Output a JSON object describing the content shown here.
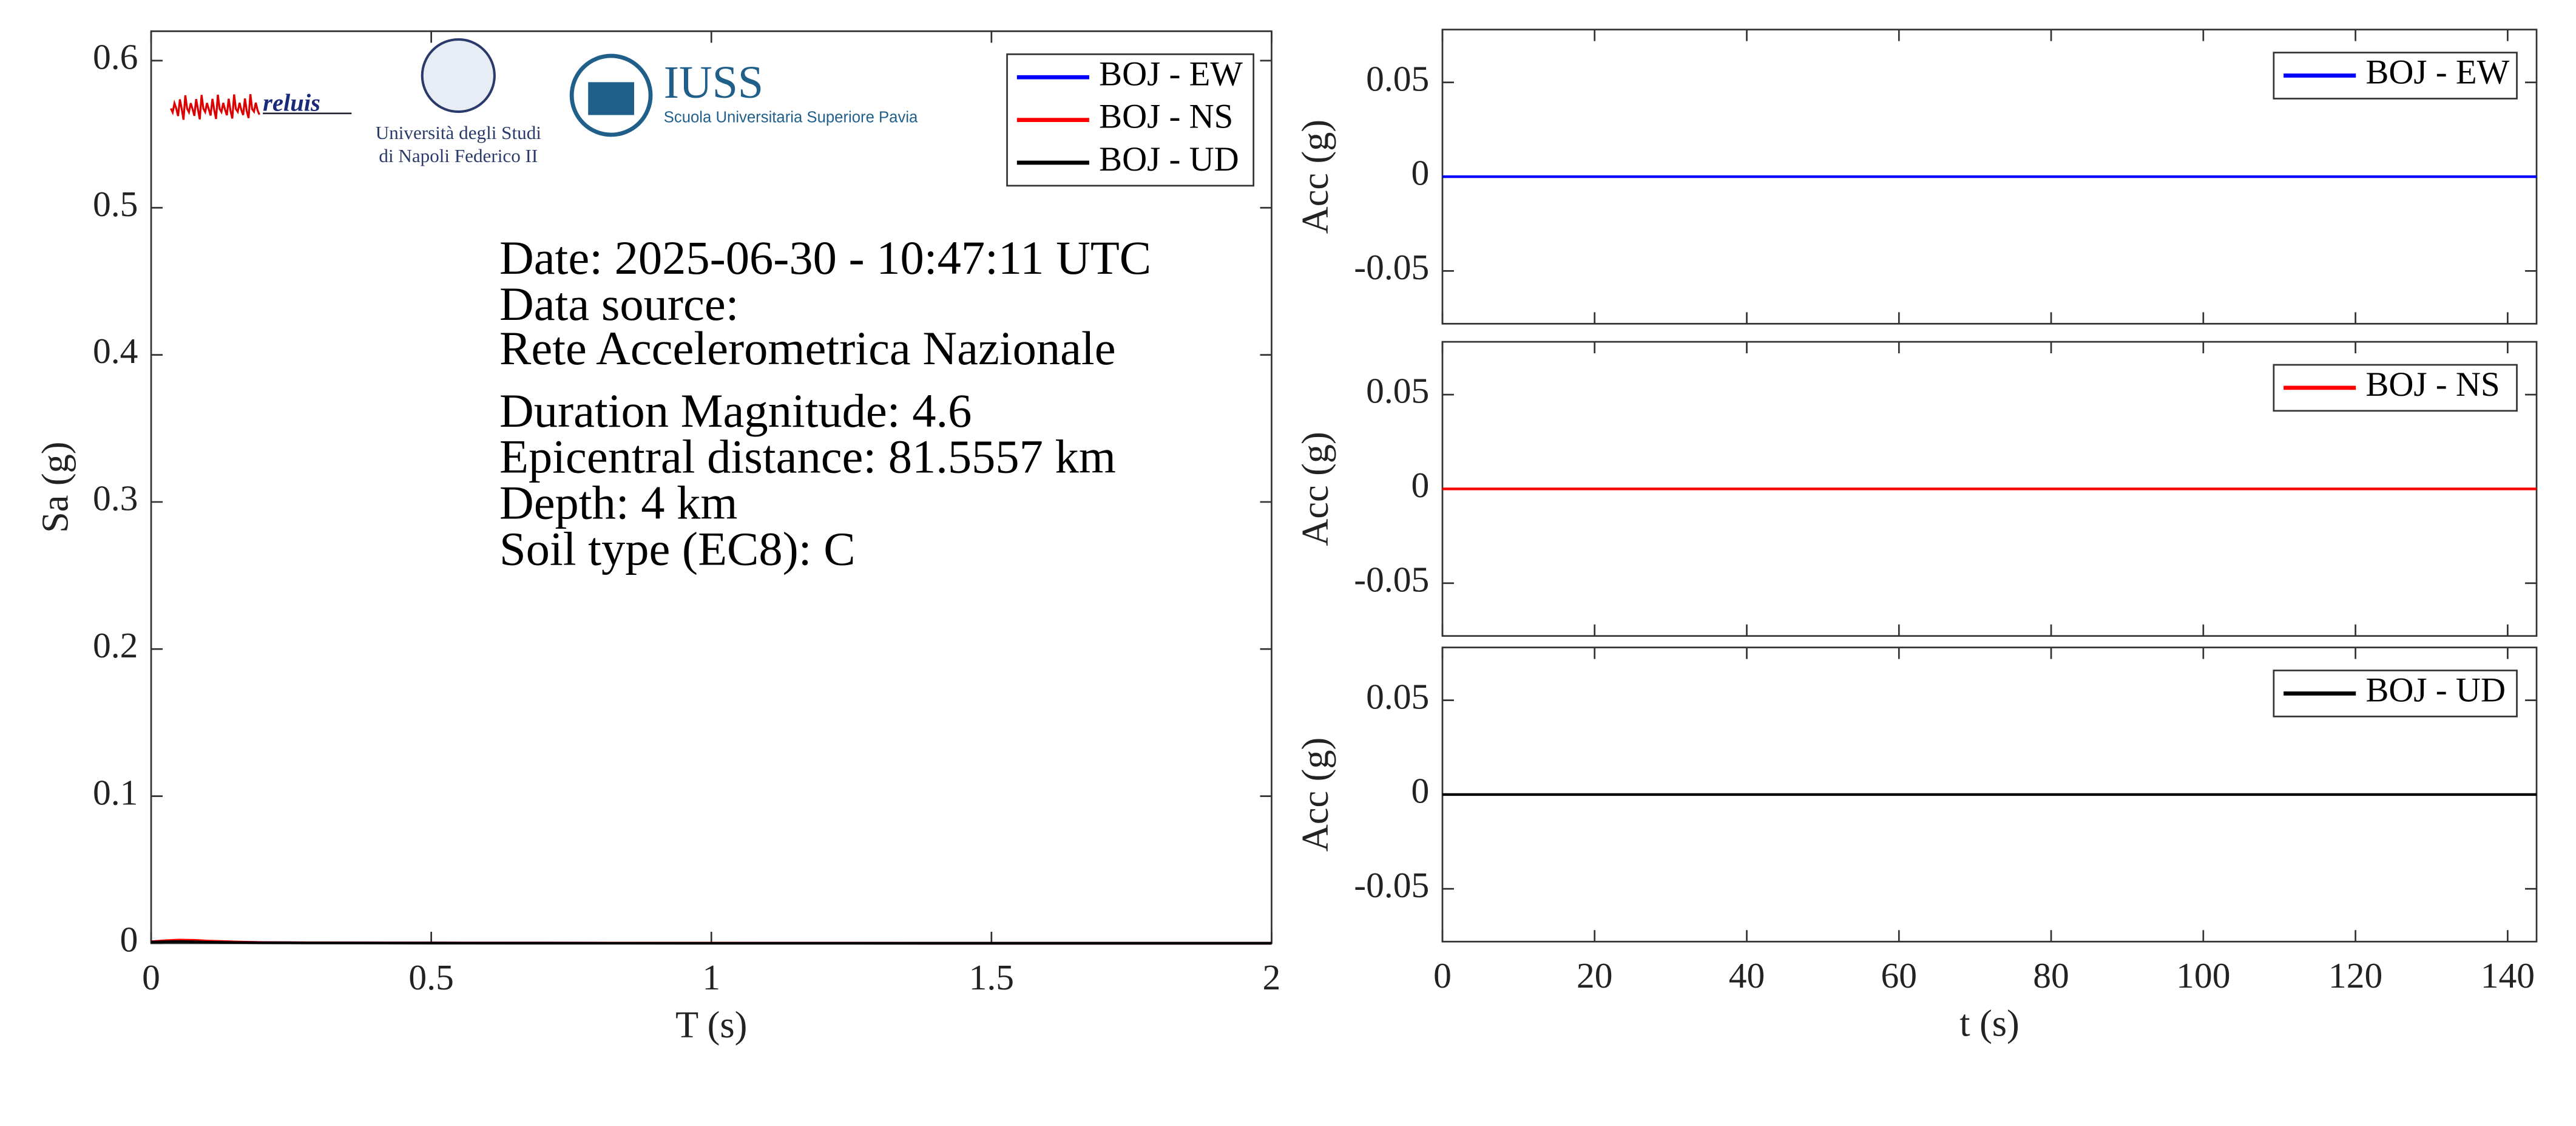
{
  "chart_data": [
    {
      "type": "line",
      "xlabel": "T (s)",
      "ylabel": "Sa (g)",
      "x": [
        0,
        0.02,
        0.05,
        0.08,
        0.1,
        0.15,
        0.2,
        0.3,
        0.5,
        1,
        1.5,
        2
      ],
      "series": [
        {
          "name": "BOJ - EW",
          "color": "#0000ff",
          "values": [
            0.001,
            0.0015,
            0.002,
            0.0018,
            0.0014,
            0.0008,
            0.0005,
            0.0003,
            0.0002,
            0.0001,
            0,
            0
          ]
        },
        {
          "name": "BOJ - NS",
          "color": "#ff0000",
          "values": [
            0.001,
            0.0016,
            0.0022,
            0.002,
            0.0015,
            0.0009,
            0.0005,
            0.0003,
            0.0002,
            0.0001,
            0,
            0
          ]
        },
        {
          "name": "BOJ - UD",
          "color": "#000000",
          "values": [
            0.0008,
            0.001,
            0.0012,
            0.001,
            0.0008,
            0.0005,
            0.0003,
            0.0002,
            0.0001,
            0,
            0,
            0
          ]
        }
      ],
      "xlim": [
        0,
        2
      ],
      "ylim": [
        0,
        0.62
      ],
      "xticks": [
        0,
        0.5,
        1,
        1.5,
        2
      ],
      "yticks": [
        0,
        0.1,
        0.2,
        0.3,
        0.4,
        0.5,
        0.6
      ],
      "legend": "upper right",
      "annotations": [
        "Date: 2025-06-30 - 10:47:11 UTC",
        "Data source:",
        "Rete Accelerometrica Nazionale",
        "Duration Magnitude: 4.6",
        "Epicentral distance: 81.5557 km",
        "Depth: 4 km",
        "Soil type (EC8): C"
      ],
      "logos": [
        "reluis",
        "Università degli Studi",
        "di Napoli Federico II",
        "IUSS",
        "Scuola Universitaria Superiore Pavia"
      ]
    },
    {
      "type": "line",
      "ylabel": "Acc (g)",
      "x": [
        0,
        143.8
      ],
      "series": [
        {
          "name": "BOJ - EW",
          "color": "#0000ff",
          "values": [
            0,
            0
          ]
        }
      ],
      "xlim": [
        0,
        143.8
      ],
      "ylim": [
        -0.078,
        0.078
      ],
      "xticks": [
        0,
        20,
        40,
        60,
        80,
        100,
        120,
        140
      ],
      "yticks": [
        -0.05,
        0,
        0.05
      ],
      "legend": "upper right"
    },
    {
      "type": "line",
      "ylabel": "Acc (g)",
      "x": [
        0,
        143.8
      ],
      "series": [
        {
          "name": "BOJ - NS",
          "color": "#ff0000",
          "values": [
            0,
            0
          ]
        }
      ],
      "xlim": [
        0,
        143.8
      ],
      "ylim": [
        -0.078,
        0.078
      ],
      "xticks": [
        0,
        20,
        40,
        60,
        80,
        100,
        120,
        140
      ],
      "yticks": [
        -0.05,
        0,
        0.05
      ],
      "legend": "upper right"
    },
    {
      "type": "line",
      "xlabel": "t (s)",
      "ylabel": "Acc (g)",
      "x": [
        0,
        143.8
      ],
      "series": [
        {
          "name": "BOJ - UD",
          "color": "#000000",
          "values": [
            0,
            0
          ]
        }
      ],
      "xlim": [
        0,
        143.8
      ],
      "ylim": [
        -0.078,
        0.078
      ],
      "xticks": [
        0,
        20,
        40,
        60,
        80,
        100,
        120,
        140
      ],
      "yticks": [
        -0.05,
        0,
        0.05
      ],
      "legend": "upper right"
    }
  ]
}
